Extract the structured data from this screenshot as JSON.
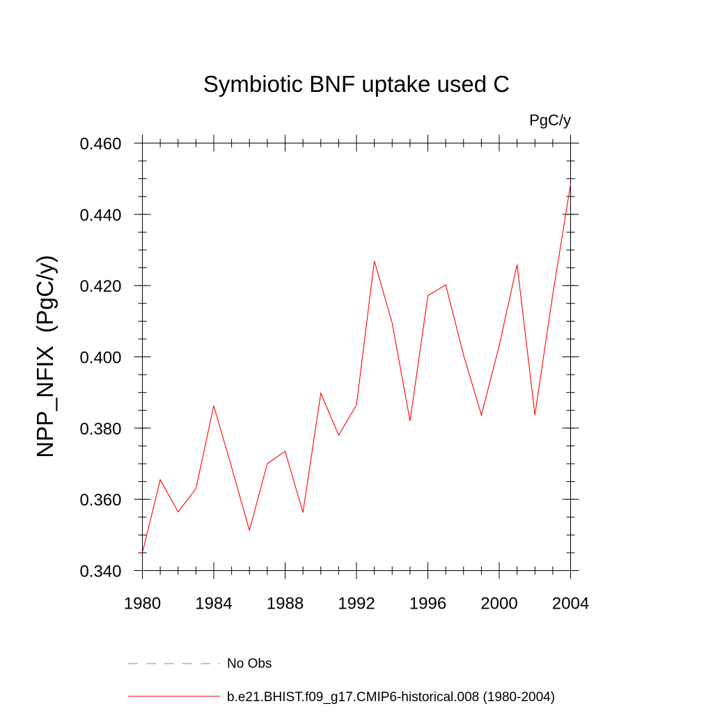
{
  "chart_data": {
    "type": "line",
    "title": "Symbiotic BNF uptake used C",
    "units_label": "PgC/y",
    "ylabel": "NPP_NFIX  (PgC/y)",
    "xlabel": "",
    "xlim": [
      1980,
      2004
    ],
    "ylim": [
      0.34,
      0.46
    ],
    "xticks": [
      "1980",
      "1984",
      "1988",
      "1992",
      "1996",
      "2000",
      "2004"
    ],
    "yticks": [
      "0.340",
      "0.360",
      "0.380",
      "0.400",
      "0.420",
      "0.440",
      "0.460"
    ],
    "grid": false,
    "legend_position": "bottom",
    "series": [
      {
        "name": "b.e21.BHIST.f09_g17.CMIP6-historical.008 (1980-2004)",
        "color": "#ff0000",
        "style": "solid",
        "x": [
          1980,
          1981,
          1982,
          1983,
          1984,
          1985,
          1986,
          1987,
          1988,
          1989,
          1990,
          1991,
          1992,
          1993,
          1994,
          1995,
          1996,
          1997,
          1998,
          1999,
          2000,
          2001,
          2002,
          2003,
          2004
        ],
        "values": [
          0.345,
          0.3655,
          0.3565,
          0.363,
          0.3863,
          0.369,
          0.3513,
          0.37,
          0.3735,
          0.3563,
          0.3898,
          0.378,
          0.3865,
          0.4269,
          0.4095,
          0.382,
          0.4172,
          0.4202,
          0.4005,
          0.3837,
          0.4032,
          0.4259,
          0.3837,
          0.4175,
          0.4485
        ]
      }
    ],
    "legend": [
      {
        "label": "No Obs",
        "color": "#8080c0",
        "style": "dashed"
      },
      {
        "label": "b.e21.BHIST.f09_g17.CMIP6-historical.008 (1980-2004)",
        "color": "#ff0000",
        "style": "solid"
      }
    ]
  }
}
